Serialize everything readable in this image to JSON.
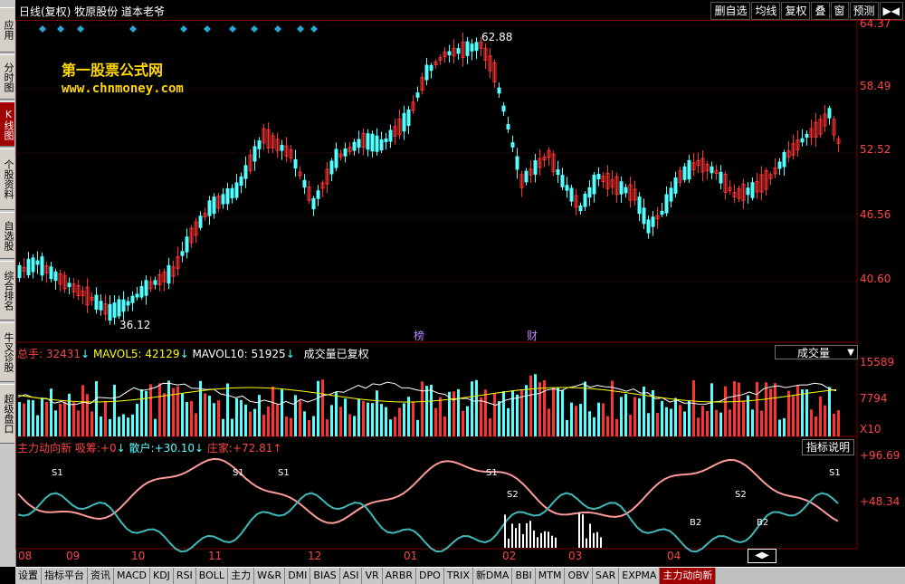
{
  "sidebar": {
    "items": [
      {
        "label": "应用"
      },
      {
        "label": "分时图"
      },
      {
        "label": "K线图"
      },
      {
        "label": "个股资料"
      },
      {
        "label": "自选股"
      },
      {
        "label": "综合排名"
      },
      {
        "label": "牛叉诊股"
      },
      {
        "label": "超级盘口"
      }
    ]
  },
  "header": {
    "period": "日线(复权)",
    "stock_name": "牧原股份",
    "addon": "道本老爷",
    "buttons": [
      "删自选",
      "均线",
      "复权",
      "叠",
      "窗",
      "预测",
      "▶◀"
    ]
  },
  "watermark": {
    "line1": "第一股票公式网",
    "line2": "www.chnmoney.com"
  },
  "price_axis": [
    "64.37",
    "58.49",
    "52.52",
    "46.56",
    "40.60"
  ],
  "price_annotations": {
    "high": "62.88",
    "low": "36.12",
    "marker1": "榜",
    "marker2": "财"
  },
  "volume_panel": {
    "label": "总手",
    "value": "32431",
    "ma5_label": "MAVOL5",
    "ma5": "42129",
    "ma10_label": "MAVOL10",
    "ma10": "51925",
    "note": "成交量已复权",
    "select_value": "成交量",
    "axis": [
      "15589",
      "7794",
      "X10"
    ]
  },
  "indicator_panel": {
    "name": "主力动向新",
    "s1_label": "吸筹",
    "s1_value": "+0",
    "s2_label": "散户",
    "s2_value": "+30.10",
    "s3_label": "庄家",
    "s3_value": "+72.81",
    "explain_button": "指标说明",
    "axis": [
      "+96.69",
      "+48.34"
    ],
    "markers": [
      "S1",
      "S1",
      "S1",
      "S1",
      "S2",
      "S2",
      "S1",
      "B2",
      "B2"
    ]
  },
  "time_axis": [
    "08",
    "09",
    "10",
    "11",
    "12",
    "01",
    "02",
    "03",
    "04"
  ],
  "tabs": [
    "设置",
    "指标平台",
    "资讯",
    "MACD",
    "KDJ",
    "RSI",
    "BOLL",
    "主力",
    "W&R",
    "DMI",
    "BIAS",
    "ASI",
    "VR",
    "ARBR",
    "DPO",
    "TRIX",
    "新DMA",
    "BBI",
    "MTM",
    "OBV",
    "SAR",
    "EXPMA",
    "主力动向新"
  ],
  "colors": {
    "up": "#ff3232",
    "down": "#54ffff",
    "ma5": "#ffffff",
    "ma10": "#ffff00",
    "grid": "#7a0000",
    "retail_line": "#3fb8b8",
    "main_line": "#ff9a9a"
  }
}
